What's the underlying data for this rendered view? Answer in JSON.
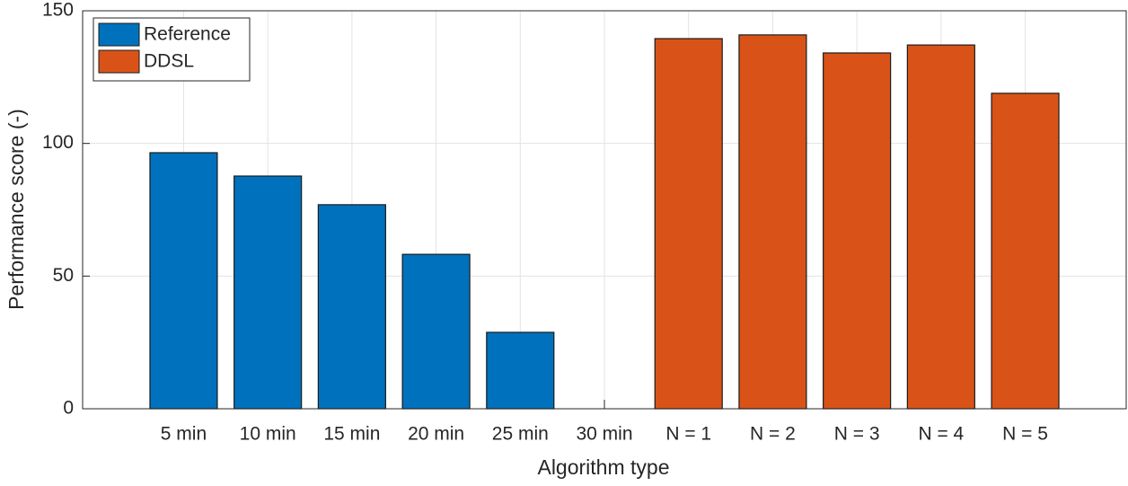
{
  "chart_data": {
    "type": "bar",
    "xlabel": "Algorithm type",
    "ylabel": "Performance score (-)",
    "categories": [
      "5 min",
      "10 min",
      "15 min",
      "20 min",
      "25 min",
      "30 min",
      "N = 1",
      "N = 2",
      "N = 3",
      "N = 4",
      "N = 5"
    ],
    "series": [
      {
        "name": "Reference",
        "color": "#0072BD",
        "values": [
          96.5,
          87.7,
          76.9,
          58.2,
          28.8,
          0,
          null,
          null,
          null,
          null,
          null
        ]
      },
      {
        "name": "DDSL",
        "color": "#D95319",
        "values": [
          null,
          null,
          null,
          null,
          null,
          null,
          139.5,
          140.9,
          134.1,
          137.1,
          118.9
        ]
      }
    ],
    "ylim": [
      0,
      150
    ],
    "yticks": [
      0,
      50,
      100,
      150
    ],
    "grid": true,
    "legend": "upper-left"
  }
}
